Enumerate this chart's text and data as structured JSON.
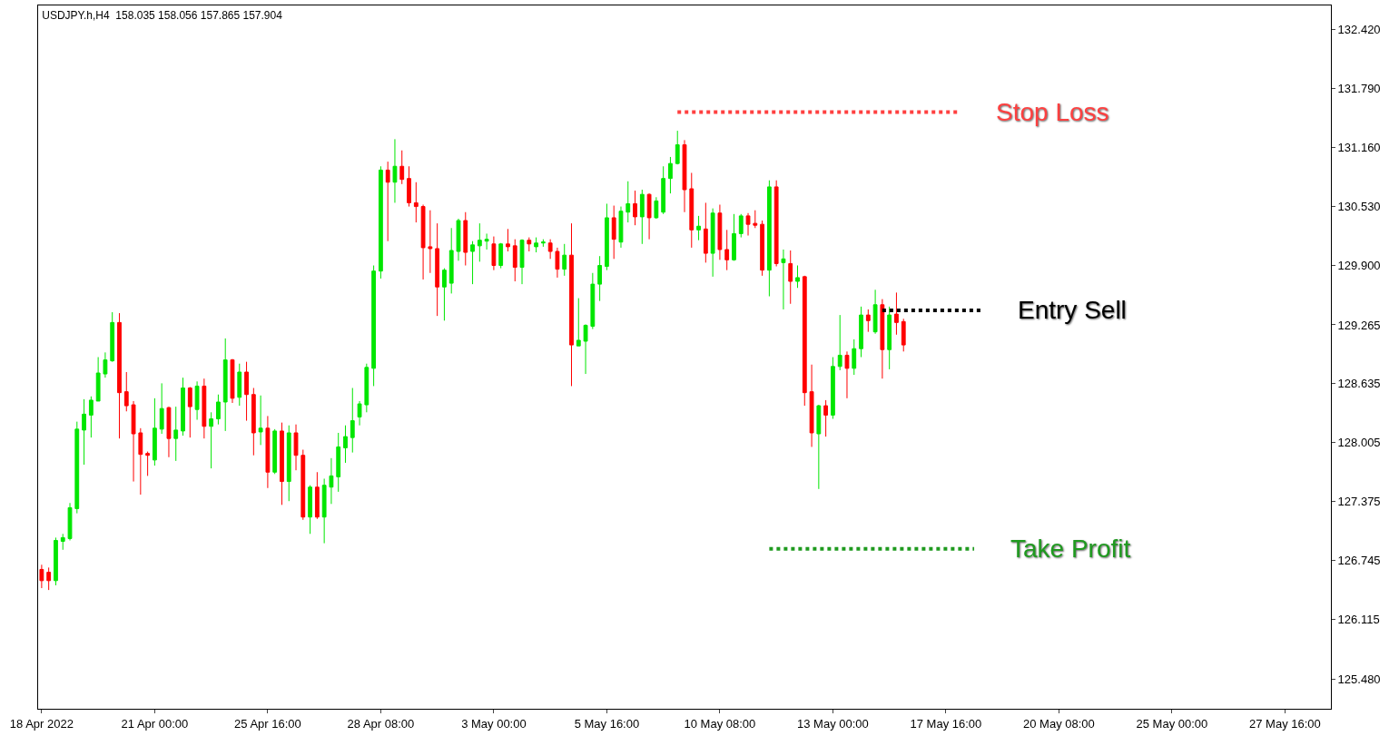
{
  "chart_data": {
    "type": "candlestick",
    "title": "USDJPY.h,H4  158.035 158.056 157.865 157.904",
    "categories": [
      "18 Apr 2022",
      null,
      null,
      null,
      null,
      null,
      null,
      null,
      null,
      null,
      null,
      null,
      null,
      null,
      null,
      null,
      "21 Apr 00:00",
      null,
      null,
      null,
      null,
      null,
      null,
      null,
      null,
      null,
      null,
      null,
      null,
      null,
      null,
      null,
      "25 Apr 16:00",
      null,
      null,
      null,
      null,
      null,
      null,
      null,
      null,
      null,
      null,
      null,
      null,
      null,
      null,
      null,
      "28 Apr 08:00",
      null,
      null,
      null,
      null,
      null,
      null,
      null,
      null,
      null,
      null,
      null,
      null,
      null,
      null,
      null,
      "3 May 00:00",
      null,
      null,
      null,
      null,
      null,
      null,
      null,
      null,
      null,
      null,
      null,
      null,
      null,
      null,
      null,
      "5 May 16:00",
      null,
      null,
      null,
      null,
      null,
      null,
      null,
      null,
      null,
      null,
      null,
      null,
      null,
      null,
      null,
      "10 May 08:00",
      null,
      null,
      null,
      null,
      null,
      null,
      null,
      null,
      null,
      null,
      null,
      null,
      null,
      null,
      null,
      "13 May 00:00",
      null,
      null,
      null,
      null,
      null,
      null,
      null,
      null,
      null,
      null,
      null,
      null,
      null,
      null,
      null,
      "17 May 16:00",
      null,
      null,
      null,
      null,
      null,
      null,
      null,
      null,
      null,
      null,
      null,
      null,
      null,
      null,
      null,
      "20 May 08:00",
      null,
      null,
      null,
      null,
      null,
      null,
      null,
      null,
      null,
      null,
      null,
      null,
      null,
      null,
      null,
      "25 May 00:00",
      null,
      null,
      null,
      null,
      null,
      null,
      null,
      null,
      null,
      null,
      null,
      null,
      null,
      null,
      null,
      "27 May 16:00",
      null,
      null,
      null,
      null,
      null,
      null
    ],
    "ohlc": [
      [
        126.65,
        126.7,
        126.45,
        126.53
      ],
      [
        126.62,
        126.67,
        126.43,
        126.53
      ],
      [
        126.53,
        126.99,
        126.48,
        126.96
      ],
      [
        126.95,
        127.03,
        126.86,
        126.99
      ],
      [
        126.98,
        127.36,
        126.96,
        127.31
      ],
      [
        127.3,
        128.23,
        127.25,
        128.15
      ],
      [
        128.14,
        128.47,
        127.77,
        128.31
      ],
      [
        128.3,
        128.5,
        128.06,
        128.46
      ],
      [
        128.45,
        128.92,
        128.45,
        128.75
      ],
      [
        128.74,
        128.97,
        128.7,
        128.89
      ],
      [
        128.88,
        129.4,
        128.87,
        129.29
      ],
      [
        129.29,
        129.39,
        128.05,
        128.54
      ],
      [
        128.55,
        128.76,
        128.34,
        128.4
      ],
      [
        128.41,
        128.45,
        127.59,
        128.1
      ],
      [
        128.11,
        128.16,
        127.45,
        127.88
      ],
      [
        127.89,
        127.91,
        127.65,
        127.87
      ],
      [
        127.82,
        128.48,
        127.76,
        128.16
      ],
      [
        128.15,
        128.64,
        128.1,
        128.37
      ],
      [
        128.38,
        128.39,
        127.85,
        128.05
      ],
      [
        128.05,
        128.39,
        127.81,
        128.14
      ],
      [
        128.13,
        128.7,
        128.08,
        128.59
      ],
      [
        128.59,
        128.6,
        128.06,
        128.39
      ],
      [
        128.36,
        128.66,
        128.25,
        128.61
      ],
      [
        128.61,
        128.69,
        128.05,
        128.18
      ],
      [
        128.18,
        128.33,
        127.73,
        128.26
      ],
      [
        128.26,
        128.52,
        128.2,
        128.44
      ],
      [
        128.44,
        129.12,
        128.13,
        128.89
      ],
      [
        128.89,
        128.9,
        128.43,
        128.48
      ],
      [
        128.49,
        128.85,
        128.4,
        128.76
      ],
      [
        128.76,
        128.87,
        128.24,
        128.52
      ],
      [
        128.52,
        128.59,
        127.87,
        128.11
      ],
      [
        128.12,
        128.51,
        127.98,
        128.16
      ],
      [
        128.16,
        128.29,
        127.52,
        127.69
      ],
      [
        127.69,
        128.15,
        127.67,
        128.13
      ],
      [
        128.13,
        128.22,
        127.34,
        127.59
      ],
      [
        127.59,
        128.19,
        127.38,
        128.11
      ],
      [
        128.11,
        128.2,
        127.71,
        127.87
      ],
      [
        127.87,
        127.93,
        127.18,
        127.21
      ],
      [
        127.21,
        127.55,
        127.03,
        127.53
      ],
      [
        127.53,
        127.69,
        127.19,
        127.21
      ],
      [
        127.21,
        127.62,
        126.93,
        127.55
      ],
      [
        127.53,
        127.84,
        127.35,
        127.65
      ],
      [
        127.64,
        128.11,
        127.48,
        127.96
      ],
      [
        127.95,
        128.19,
        127.79,
        128.07
      ],
      [
        128.06,
        128.59,
        127.9,
        128.24
      ],
      [
        128.28,
        128.45,
        128.19,
        128.42
      ],
      [
        128.41,
        128.85,
        128.33,
        128.81
      ],
      [
        128.8,
        129.9,
        128.61,
        129.84
      ],
      [
        129.84,
        130.96,
        129.76,
        130.92
      ],
      [
        130.92,
        131.01,
        130.16,
        130.79
      ],
      [
        130.79,
        131.25,
        130.57,
        130.96
      ],
      [
        130.96,
        131.13,
        130.77,
        130.82
      ],
      [
        130.83,
        130.96,
        130.53,
        130.57
      ],
      [
        130.57,
        130.79,
        130.36,
        130.53
      ],
      [
        130.53,
        130.55,
        129.75,
        130.09
      ],
      [
        130.1,
        130.49,
        129.82,
        130.08
      ],
      [
        130.08,
        130.35,
        129.36,
        129.67
      ],
      [
        129.67,
        129.87,
        129.31,
        129.85
      ],
      [
        129.71,
        130.3,
        129.6,
        130.06
      ],
      [
        130.05,
        130.4,
        129.95,
        130.38
      ],
      [
        130.38,
        130.47,
        129.9,
        130.04
      ],
      [
        130.05,
        130.16,
        129.7,
        130.12
      ],
      [
        130.11,
        130.35,
        129.94,
        130.17
      ],
      [
        130.16,
        130.24,
        130.07,
        130.18
      ],
      [
        130.13,
        130.21,
        129.85,
        129.9
      ],
      [
        129.9,
        130.14,
        129.87,
        130.13
      ],
      [
        130.13,
        130.29,
        130.05,
        130.1
      ],
      [
        130.11,
        130.18,
        129.73,
        129.88
      ],
      [
        129.88,
        130.18,
        129.7,
        130.17
      ],
      [
        130.17,
        130.2,
        130.05,
        130.13
      ],
      [
        130.1,
        130.2,
        130.04,
        130.14
      ],
      [
        130.14,
        130.18,
        130.1,
        130.15
      ],
      [
        130.14,
        130.18,
        129.97,
        130.05
      ],
      [
        130.05,
        130.09,
        129.77,
        129.86
      ],
      [
        129.86,
        130.13,
        129.79,
        130.01
      ],
      [
        130.01,
        130.35,
        128.61,
        129.05
      ],
      [
        129.04,
        129.55,
        129.04,
        129.1
      ],
      [
        129.09,
        129.27,
        128.74,
        129.26
      ],
      [
        129.25,
        129.82,
        129.22,
        129.7
      ],
      [
        129.7,
        130.0,
        129.52,
        129.9
      ],
      [
        129.89,
        130.56,
        129.85,
        130.41
      ],
      [
        130.41,
        130.54,
        129.97,
        130.18
      ],
      [
        130.15,
        130.53,
        130.09,
        130.48
      ],
      [
        130.47,
        130.8,
        130.36,
        130.56
      ],
      [
        130.56,
        130.7,
        130.33,
        130.42
      ],
      [
        130.42,
        130.71,
        130.13,
        130.66
      ],
      [
        130.66,
        130.67,
        130.18,
        130.41
      ],
      [
        130.41,
        130.63,
        130.4,
        130.59
      ],
      [
        130.47,
        130.96,
        130.45,
        130.83
      ],
      [
        130.83,
        131.06,
        130.67,
        130.99
      ],
      [
        130.99,
        131.34,
        130.98,
        131.19
      ],
      [
        131.19,
        131.24,
        130.47,
        130.71
      ],
      [
        130.72,
        130.89,
        130.09,
        130.28
      ],
      [
        130.28,
        130.43,
        130.17,
        130.32
      ],
      [
        130.29,
        130.57,
        129.93,
        130.03
      ],
      [
        130.03,
        130.51,
        129.78,
        130.46
      ],
      [
        130.46,
        130.55,
        129.96,
        130.07
      ],
      [
        130.07,
        130.28,
        129.85,
        129.96
      ],
      [
        129.96,
        130.45,
        129.95,
        130.24
      ],
      [
        130.24,
        130.45,
        130.2,
        130.43
      ],
      [
        130.43,
        130.46,
        130.22,
        130.34
      ],
      [
        130.35,
        130.49,
        130.3,
        130.33
      ],
      [
        130.34,
        130.38,
        129.79,
        129.85
      ],
      [
        129.85,
        130.81,
        129.57,
        130.74
      ],
      [
        130.74,
        130.81,
        129.89,
        129.92
      ],
      [
        129.93,
        130.07,
        129.43,
        129.97
      ],
      [
        129.92,
        130.06,
        129.49,
        129.73
      ],
      [
        129.73,
        129.9,
        129.66,
        129.77
      ],
      [
        129.78,
        129.79,
        128.4,
        128.54
      ],
      [
        128.55,
        128.84,
        127.96,
        128.11
      ],
      [
        128.1,
        128.41,
        127.51,
        128.4
      ],
      [
        128.4,
        128.46,
        128.07,
        128.3
      ],
      [
        128.3,
        128.92,
        128.26,
        128.82
      ],
      [
        128.82,
        129.37,
        128.78,
        128.94
      ],
      [
        128.94,
        128.98,
        128.48,
        128.8
      ],
      [
        128.8,
        129.11,
        128.73,
        129.01
      ],
      [
        129.01,
        129.46,
        128.92,
        129.37
      ],
      [
        129.37,
        129.43,
        129.19,
        129.31
      ],
      [
        129.19,
        129.64,
        129.17,
        129.48
      ],
      [
        129.48,
        129.54,
        128.69,
        129.0
      ],
      [
        129.0,
        129.46,
        128.79,
        129.37
      ],
      [
        129.38,
        129.61,
        129.16,
        129.29
      ],
      [
        129.3,
        129.33,
        128.98,
        129.05
      ],
      null,
      null,
      null,
      null,
      null,
      null,
      null,
      null,
      null,
      null,
      null,
      null,
      null,
      null,
      null,
      null,
      null,
      null,
      null,
      null,
      null,
      null,
      null,
      null,
      null,
      null,
      null,
      null,
      null,
      null,
      null,
      null,
      null,
      null,
      null,
      null,
      null,
      null,
      null,
      null,
      null,
      null,
      null,
      null,
      null,
      null,
      null,
      null,
      null,
      null,
      null,
      null,
      null,
      null,
      null,
      null,
      null,
      null,
      null,
      null
    ],
    "colors": [
      "#ff0000",
      "#ff0000",
      "#00e600",
      "#00e600",
      "#00e600",
      "#00e600",
      "#00e600",
      "#00e600",
      "#00e600",
      "#00e600",
      "#00e600",
      "#ff0000",
      "#ff0000",
      "#ff0000",
      "#ff0000",
      "#ff0000",
      "#00e600",
      "#00e600",
      "#ff0000",
      "#00e600",
      "#00e600",
      "#ff0000",
      "#00e600",
      "#ff0000",
      "#00e600",
      "#00e600",
      "#00e600",
      "#ff0000",
      "#00e600",
      "#ff0000",
      "#ff0000",
      "#00e600",
      "#ff0000",
      "#00e600",
      "#ff0000",
      "#00e600",
      "#ff0000",
      "#ff0000",
      "#00e600",
      "#ff0000",
      "#00e600",
      "#00e600",
      "#00e600",
      "#00e600",
      "#00e600",
      "#00e600",
      "#00e600",
      "#00e600",
      "#00e600",
      "#ff0000",
      "#00e600",
      "#ff0000",
      "#ff0000",
      "#ff0000",
      "#ff0000",
      "#ff0000",
      "#ff0000",
      "#00e600",
      "#00e600",
      "#00e600",
      "#ff0000",
      "#00e600",
      "#00e600",
      "#00e600",
      "#ff0000",
      "#00e600",
      "#ff0000",
      "#ff0000",
      "#00e600",
      "#ff0000",
      "#00e600",
      "#00e600",
      "#ff0000",
      "#ff0000",
      "#00e600",
      "#ff0000",
      "#00e600",
      "#00e600",
      "#00e600",
      "#00e600",
      "#00e600",
      "#ff0000",
      "#00e600",
      "#00e600",
      "#ff0000",
      "#00e600",
      "#ff0000",
      "#00e600",
      "#00e600",
      "#00e600",
      "#00e600",
      "#ff0000",
      "#ff0000",
      "#00e600",
      "#ff0000",
      "#00e600",
      "#ff0000",
      "#ff0000",
      "#00e600",
      "#00e600",
      "#ff0000",
      "#ff0000",
      "#ff0000",
      "#00e600",
      "#ff0000",
      "#00e600",
      "#ff0000",
      "#00e600",
      "#ff0000",
      "#ff0000",
      "#00e600",
      "#ff0000",
      "#00e600",
      "#00e600",
      "#ff0000",
      "#00e600",
      "#00e600",
      "#ff0000",
      "#00e600",
      "#ff0000",
      "#00e600",
      "#ff0000",
      "#ff0000",
      null,
      null,
      null,
      null,
      null,
      null,
      null,
      null,
      null,
      null,
      null,
      null,
      null,
      null,
      null,
      null,
      null,
      null,
      null,
      null,
      null,
      null,
      null,
      null,
      null,
      null,
      null,
      null,
      null,
      null,
      null,
      null,
      null,
      null,
      null,
      null,
      null,
      null,
      null,
      null,
      null,
      null,
      null,
      null,
      null,
      null,
      null,
      null,
      null,
      null,
      null,
      null,
      null,
      null,
      null,
      null,
      null,
      null,
      null,
      null
    ],
    "series": [
      {
        "type": "line",
        "name": "Stop Loss",
        "color": "#ff4040",
        "line_style": "dotted",
        "values": [
          null,
          null,
          null,
          null,
          null,
          null,
          null,
          null,
          null,
          null,
          null,
          null,
          null,
          null,
          null,
          null,
          null,
          null,
          null,
          null,
          null,
          null,
          null,
          null,
          null,
          null,
          null,
          null,
          null,
          null,
          null,
          null,
          null,
          null,
          null,
          null,
          null,
          null,
          null,
          null,
          null,
          null,
          null,
          null,
          null,
          null,
          null,
          null,
          null,
          null,
          null,
          null,
          null,
          null,
          null,
          null,
          null,
          null,
          null,
          null,
          null,
          null,
          null,
          null,
          null,
          null,
          null,
          null,
          null,
          null,
          null,
          null,
          null,
          null,
          null,
          null,
          null,
          null,
          null,
          null,
          null,
          null,
          null,
          null,
          null,
          null,
          null,
          null,
          null,
          null,
          131.54,
          131.54,
          131.54,
          131.54,
          131.54,
          131.54,
          131.54,
          131.54,
          131.54,
          131.54,
          131.54,
          131.54,
          131.54,
          131.54,
          131.54,
          131.54,
          131.54,
          131.54,
          131.54,
          131.54,
          131.54,
          131.54,
          131.54,
          131.54,
          131.54,
          131.54,
          131.54,
          131.54,
          131.54,
          131.54,
          131.54,
          131.54,
          131.54,
          131.54,
          131.54,
          131.54,
          131.54,
          131.54,
          131.54,
          131.54,
          131.54,
          null,
          null,
          null,
          null,
          null,
          null,
          null,
          null,
          null,
          null,
          null,
          null,
          null,
          null,
          null,
          null,
          null,
          null,
          null,
          null,
          null,
          null,
          null,
          null,
          null,
          null,
          null,
          null,
          null,
          null,
          null,
          null,
          null,
          null,
          null,
          null,
          null,
          null,
          null,
          null,
          null,
          null,
          null,
          null,
          null,
          null,
          null,
          null,
          null,
          null,
          null,
          null
        ]
      },
      {
        "type": "line",
        "name": "Entry Sell",
        "color": "#000000",
        "line_style": "dotted",
        "values": [
          null,
          null,
          null,
          null,
          null,
          null,
          null,
          null,
          null,
          null,
          null,
          null,
          null,
          null,
          null,
          null,
          null,
          null,
          null,
          null,
          null,
          null,
          null,
          null,
          null,
          null,
          null,
          null,
          null,
          null,
          null,
          null,
          null,
          null,
          null,
          null,
          null,
          null,
          null,
          null,
          null,
          null,
          null,
          null,
          null,
          null,
          null,
          null,
          null,
          null,
          null,
          null,
          null,
          null,
          null,
          null,
          null,
          null,
          null,
          null,
          null,
          null,
          null,
          null,
          null,
          null,
          null,
          null,
          null,
          null,
          null,
          null,
          null,
          null,
          null,
          null,
          null,
          null,
          null,
          null,
          null,
          null,
          null,
          null,
          null,
          null,
          null,
          null,
          null,
          null,
          null,
          null,
          null,
          null,
          null,
          null,
          null,
          null,
          null,
          null,
          null,
          null,
          null,
          null,
          null,
          null,
          null,
          null,
          null,
          null,
          null,
          null,
          null,
          null,
          null,
          null,
          null,
          null,
          null,
          129.42,
          129.42,
          129.42,
          129.42,
          129.42,
          129.42,
          129.42,
          129.42,
          129.42,
          129.42,
          129.42,
          129.42,
          129.42,
          129.42,
          129.42,
          null,
          null,
          null,
          null,
          null,
          null,
          null,
          null,
          null,
          null,
          null,
          null,
          null,
          null,
          null,
          null,
          null,
          null,
          null,
          null,
          null,
          null,
          null,
          null,
          null,
          null,
          null,
          null,
          null,
          null,
          null,
          null,
          null,
          null,
          null,
          null,
          null,
          null,
          null,
          null,
          null,
          null,
          null,
          null,
          null,
          null,
          null,
          null,
          null
        ]
      },
      {
        "type": "line",
        "name": "Take Profit",
        "color": "#1f9a1f",
        "line_style": "dotted",
        "values": [
          null,
          null,
          null,
          null,
          null,
          null,
          null,
          null,
          null,
          null,
          null,
          null,
          null,
          null,
          null,
          null,
          null,
          null,
          null,
          null,
          null,
          null,
          null,
          null,
          null,
          null,
          null,
          null,
          null,
          null,
          null,
          null,
          null,
          null,
          null,
          null,
          null,
          null,
          null,
          null,
          null,
          null,
          null,
          null,
          null,
          null,
          null,
          null,
          null,
          null,
          null,
          null,
          null,
          null,
          null,
          null,
          null,
          null,
          null,
          null,
          null,
          null,
          null,
          null,
          null,
          null,
          null,
          null,
          null,
          null,
          null,
          null,
          null,
          null,
          null,
          null,
          null,
          null,
          null,
          null,
          null,
          null,
          null,
          null,
          null,
          null,
          null,
          null,
          null,
          null,
          null,
          null,
          null,
          null,
          null,
          null,
          null,
          null,
          null,
          null,
          null,
          null,
          null,
          126.87,
          126.87,
          126.87,
          126.87,
          126.87,
          126.87,
          126.87,
          126.87,
          126.87,
          126.87,
          126.87,
          126.87,
          126.87,
          126.87,
          126.87,
          126.87,
          126.87,
          126.87,
          126.87,
          126.87,
          126.87,
          126.87,
          126.87,
          126.87,
          126.87,
          126.87,
          126.87,
          126.87,
          126.87,
          126.87,
          null,
          null,
          null,
          null,
          null,
          null,
          null,
          null,
          null,
          null,
          null,
          null,
          null,
          null,
          null,
          null,
          null,
          null,
          null,
          null,
          null,
          null,
          null,
          null,
          null,
          null,
          null,
          null,
          null,
          null,
          null,
          null,
          null,
          null,
          null,
          null,
          null,
          null,
          null,
          null,
          null,
          null,
          null,
          null,
          null,
          null,
          null,
          null,
          null,
          null
        ]
      }
    ],
    "ylim": [
      125.16,
      132.68
    ],
    "yticks": [
      {
        "value": 125.48,
        "label": "125.480"
      },
      {
        "value": 126.115,
        "label": "126.115"
      },
      {
        "value": 126.745,
        "label": "126.745"
      },
      {
        "value": 127.375,
        "label": "127.375"
      },
      {
        "value": 128.005,
        "label": "128.005"
      },
      {
        "value": 128.635,
        "label": "128.635"
      },
      {
        "value": 129.265,
        "label": "129.265"
      },
      {
        "value": 129.9,
        "label": "129.900"
      },
      {
        "value": 130.53,
        "label": "130.530"
      },
      {
        "value": 131.16,
        "label": "131.160"
      },
      {
        "value": 131.79,
        "label": "131.790"
      },
      {
        "value": 132.42,
        "label": "132.420"
      }
    ]
  }
}
